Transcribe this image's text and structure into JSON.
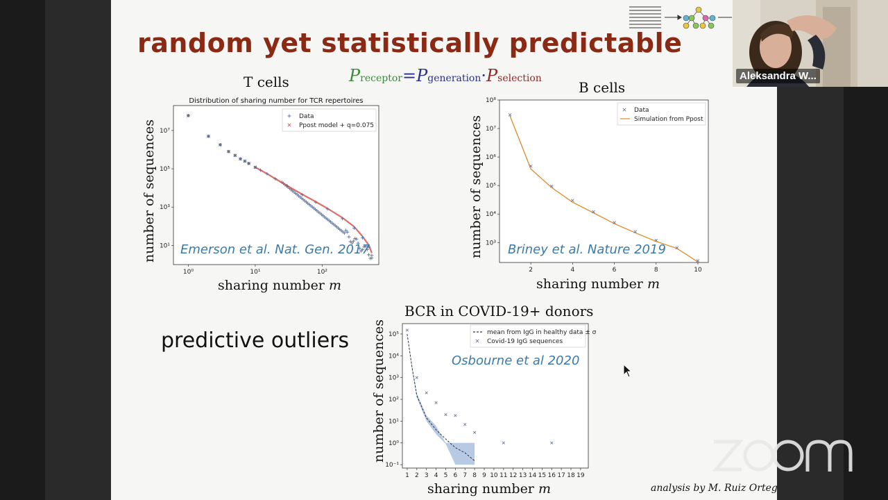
{
  "window": {
    "participant_name": "Aleksandra W...",
    "watermark": "zoom"
  },
  "slide": {
    "title": "random yet statistically predictable",
    "formula": {
      "lhs": "P",
      "lhs_sub": "receptor",
      "eq": "=",
      "p1": "P",
      "p1_sub": "generation",
      "dot": "·",
      "p2": "P",
      "p2_sub": "selection"
    },
    "predictive_text": "predictive outliers",
    "credit": "analysis by M. Ruiz Ortega",
    "colors": {
      "title": "#8a2a14",
      "citation": "#3a7aa8",
      "data_marker": "#5a6e9a",
      "model_red": "#d9534f",
      "model_orange": "#e08a2a",
      "band_blue": "#a9c1de"
    }
  },
  "panels": {
    "tcell": {
      "heading": "T cells",
      "xlabel": "sharing number",
      "xlabel_var": "m",
      "ylabel": "number of sequences",
      "citation": "Emerson et al. Nat. Gen. 2017"
    },
    "bcell": {
      "heading": "B cells",
      "xlabel": "sharing number",
      "xlabel_var": "m",
      "ylabel": "number of sequences",
      "citation": "Briney et al. Nature 2019"
    },
    "covid": {
      "heading": "BCR in COVID-19+ donors",
      "xlabel": "sharing number",
      "xlabel_var": "m",
      "ylabel": "number of sequences",
      "citation": "Osbourne et al 2020"
    }
  },
  "chart_data": [
    {
      "type": "scatter",
      "title": "Distribution of sharing number for TCR repertoires",
      "xscale": "log",
      "yscale": "log",
      "xlim": [
        0.6,
        700
      ],
      "ylim": [
        1,
        200000000
      ],
      "xticks": [
        "10⁰",
        "10¹",
        "10²"
      ],
      "xtick_values": [
        1,
        10,
        100
      ],
      "yticks": [
        "10¹",
        "10³",
        "10⁵",
        "10⁷"
      ],
      "ytick_values": [
        10,
        1000,
        100000,
        10000000
      ],
      "legend": "top-right",
      "series": [
        {
          "name": "Data",
          "marker": "+",
          "x": [
            1,
            2,
            3,
            4,
            5,
            6,
            7,
            8,
            10,
            12,
            15,
            20,
            30,
            50,
            80,
            120,
            200,
            300,
            400,
            500,
            550
          ],
          "y": [
            60000000,
            5000000,
            1800000,
            800000,
            500000,
            330000,
            250000,
            190000,
            120000,
            85000,
            55000,
            30000,
            13000,
            4500,
            1800,
            800,
            250,
            80,
            25,
            8,
            3
          ]
        },
        {
          "name": "Ppost model + q=0.075",
          "marker": "x",
          "x": [
            1,
            2,
            3,
            4,
            5,
            6,
            7,
            8,
            10,
            12,
            15,
            20,
            30,
            50,
            80,
            120,
            200,
            300,
            400,
            500,
            550
          ],
          "y": [
            60000000,
            5000000,
            1800000,
            800000,
            500000,
            330000,
            250000,
            190000,
            120000,
            85000,
            55000,
            30000,
            13000,
            4700,
            1900,
            850,
            280,
            95,
            30,
            10,
            4
          ]
        }
      ]
    },
    {
      "type": "line",
      "title": "",
      "xscale": "linear",
      "yscale": "log",
      "xlim": [
        0.5,
        10.5
      ],
      "ylim": [
        200,
        100000000
      ],
      "xticks": [
        "2",
        "4",
        "6",
        "8",
        "10"
      ],
      "xtick_values": [
        2,
        4,
        6,
        8,
        10
      ],
      "yticks": [
        "10³",
        "10⁴",
        "10⁵",
        "10⁶",
        "10⁷",
        "10⁸"
      ],
      "ytick_values": [
        1000,
        10000,
        100000,
        1000000,
        10000000,
        100000000
      ],
      "legend": "top-right",
      "series": [
        {
          "name": "Data",
          "marker": "x",
          "x": [
            1,
            2,
            3,
            4,
            5,
            6,
            7,
            8,
            9,
            10
          ],
          "y": [
            30000000,
            480000,
            95000,
            30000,
            12000,
            5000,
            2400,
            1200,
            650,
            230
          ]
        },
        {
          "name": "Simulation from Ppost",
          "marker": "line",
          "x": [
            1,
            2,
            3,
            4,
            5,
            6,
            7,
            8,
            9,
            10
          ],
          "y": [
            28000000,
            380000,
            85000,
            26000,
            11000,
            4600,
            2200,
            1100,
            620,
            210
          ]
        }
      ]
    },
    {
      "type": "line",
      "title": "",
      "xscale": "linear",
      "yscale": "log",
      "xlim": [
        0.5,
        19.8
      ],
      "ylim": [
        0.07,
        300000
      ],
      "xticks": [
        "1",
        "2",
        "3",
        "4",
        "5",
        "6",
        "7",
        "8",
        "9",
        "10",
        "11",
        "12",
        "13",
        "14",
        "15",
        "16",
        "17",
        "18",
        "19"
      ],
      "xtick_values": [
        1,
        2,
        3,
        4,
        5,
        6,
        7,
        8,
        9,
        10,
        11,
        12,
        13,
        14,
        15,
        16,
        17,
        18,
        19
      ],
      "yticks": [
        "10⁻¹",
        "10⁰",
        "10¹",
        "10²",
        "10³",
        "10⁴",
        "10⁵"
      ],
      "ytick_values": [
        0.1,
        1,
        10,
        100,
        1000,
        10000,
        100000
      ],
      "legend": "top-right",
      "series": [
        {
          "name": "mean from IgG in healthy data ± σ",
          "marker": "dashed",
          "x": [
            1,
            1.5,
            2,
            3,
            4,
            5,
            6,
            7,
            8
          ],
          "y": [
            100000,
            3000,
            150,
            14,
            4,
            1.5,
            0.6,
            0.35,
            0.15
          ],
          "band_low": [
            100000,
            2500,
            120,
            10,
            2.5,
            0.9,
            0.1,
            0.1,
            0.1
          ],
          "band_high": [
            110000,
            3600,
            190,
            18,
            6,
            1,
            1,
            1,
            1
          ]
        },
        {
          "name": "Covid-19 IgG sequences",
          "marker": "x",
          "x": [
            1,
            2,
            3,
            4,
            5,
            6,
            7,
            8,
            11,
            16
          ],
          "y": [
            150000,
            1000,
            200,
            70,
            20,
            18,
            7,
            3,
            1,
            1
          ]
        }
      ]
    }
  ]
}
